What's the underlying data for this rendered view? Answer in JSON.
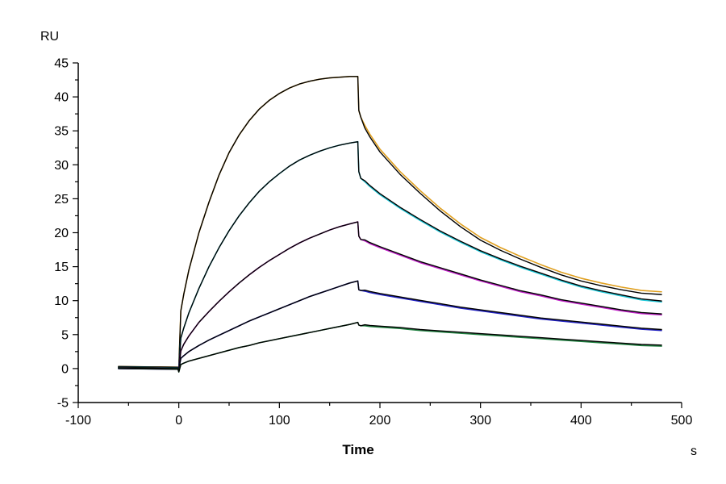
{
  "chart_data": {
    "type": "line",
    "title": "",
    "xlabel": "Time",
    "x_unit": "s",
    "ylabel": "RU",
    "xlim": [
      -100,
      500
    ],
    "ylim": [
      -5,
      45
    ],
    "x_ticks": [
      "-100",
      "0",
      "100",
      "200",
      "300",
      "400",
      "500"
    ],
    "y_ticks": [
      "-5",
      "0",
      "5",
      "10",
      "15",
      "20",
      "25",
      "30",
      "35",
      "40",
      "45"
    ],
    "grid": false,
    "legend": "none",
    "series": [
      {
        "color": "#E0A020",
        "fit_color": "#000000",
        "x": [
          -60,
          -1,
          0,
          2,
          5,
          10,
          20,
          30,
          40,
          50,
          60,
          70,
          80,
          90,
          100,
          110,
          120,
          130,
          140,
          150,
          160,
          170,
          178,
          179,
          181,
          185,
          190,
          200,
          220,
          240,
          260,
          280,
          300,
          320,
          340,
          360,
          380,
          400,
          420,
          440,
          460,
          480
        ],
        "y": [
          0.3,
          0.2,
          0.2,
          8.5,
          11,
          14.5,
          20,
          24.5,
          28.5,
          31.8,
          34.4,
          36.5,
          38.2,
          39.5,
          40.5,
          41.3,
          41.9,
          42.3,
          42.6,
          42.8,
          42.9,
          43.0,
          43.0,
          38.0,
          37.0,
          35.8,
          34.5,
          32.3,
          29.0,
          26.2,
          23.6,
          21.3,
          19.3,
          17.8,
          16.5,
          15.3,
          14.2,
          13.3,
          12.6,
          12.0,
          11.5,
          11.3
        ]
      },
      {
        "color": "#20C8D8",
        "fit_color": "#000000",
        "x": [
          -60,
          -1,
          0,
          2,
          5,
          10,
          20,
          30,
          40,
          50,
          60,
          70,
          80,
          90,
          100,
          110,
          120,
          130,
          140,
          150,
          160,
          170,
          178,
          179,
          181,
          185,
          190,
          200,
          220,
          240,
          260,
          280,
          300,
          320,
          340,
          360,
          380,
          400,
          420,
          440,
          460,
          480
        ],
        "y": [
          0.2,
          0.1,
          0.1,
          4.5,
          6,
          8.2,
          11.8,
          15.0,
          17.8,
          20.3,
          22.5,
          24.4,
          26.1,
          27.5,
          28.7,
          29.8,
          30.7,
          31.4,
          32.0,
          32.5,
          32.9,
          33.2,
          33.4,
          29.0,
          28.0,
          27.5,
          26.8,
          25.6,
          23.6,
          21.8,
          20.1,
          18.6,
          17.2,
          16.0,
          14.9,
          13.9,
          12.9,
          12.0,
          11.3,
          10.7,
          10.1,
          9.8
        ]
      },
      {
        "color": "#C020C8",
        "fit_color": "#000000",
        "x": [
          -60,
          -1,
          0,
          2,
          5,
          10,
          20,
          30,
          40,
          50,
          60,
          70,
          80,
          90,
          100,
          110,
          120,
          130,
          140,
          150,
          160,
          170,
          178,
          179,
          181,
          185,
          190,
          200,
          220,
          240,
          260,
          280,
          300,
          320,
          340,
          360,
          380,
          400,
          420,
          440,
          460,
          480
        ],
        "y": [
          0.1,
          0.0,
          0.0,
          2.6,
          3.6,
          4.8,
          6.8,
          8.4,
          9.9,
          11.3,
          12.6,
          13.8,
          14.9,
          15.9,
          16.8,
          17.7,
          18.5,
          19.2,
          19.8,
          20.4,
          20.9,
          21.3,
          21.6,
          19.5,
          19.0,
          18.8,
          18.4,
          17.8,
          16.7,
          15.6,
          14.7,
          13.8,
          12.9,
          12.1,
          11.3,
          10.7,
          10.0,
          9.5,
          9.0,
          8.5,
          8.1,
          7.9
        ]
      },
      {
        "color": "#2020C0",
        "fit_color": "#000000",
        "x": [
          -60,
          -1,
          0,
          2,
          5,
          10,
          20,
          30,
          40,
          50,
          60,
          70,
          80,
          90,
          100,
          110,
          120,
          130,
          140,
          150,
          160,
          170,
          178,
          179,
          181,
          185,
          190,
          200,
          220,
          240,
          260,
          280,
          300,
          320,
          340,
          360,
          380,
          400,
          420,
          440,
          460,
          480
        ],
        "y": [
          0.0,
          -0.1,
          -0.1,
          1.5,
          1.9,
          2.5,
          3.4,
          4.2,
          4.9,
          5.6,
          6.3,
          7.0,
          7.6,
          8.2,
          8.8,
          9.4,
          10.0,
          10.6,
          11.1,
          11.6,
          12.1,
          12.6,
          12.9,
          11.6,
          11.5,
          11.4,
          11.2,
          10.9,
          10.4,
          9.9,
          9.4,
          8.9,
          8.5,
          8.1,
          7.7,
          7.3,
          7.0,
          6.7,
          6.4,
          6.1,
          5.8,
          5.6
        ]
      },
      {
        "color": "#208040",
        "fit_color": "#000000",
        "x": [
          -60,
          -1,
          0,
          2,
          5,
          10,
          20,
          30,
          40,
          50,
          60,
          70,
          80,
          90,
          100,
          110,
          120,
          130,
          140,
          150,
          160,
          170,
          178,
          179,
          181,
          185,
          190,
          200,
          220,
          240,
          260,
          280,
          300,
          320,
          340,
          360,
          380,
          400,
          420,
          440,
          460,
          480
        ],
        "y": [
          0.1,
          0.0,
          -0.5,
          0.6,
          0.8,
          1.1,
          1.5,
          1.9,
          2.3,
          2.7,
          3.1,
          3.4,
          3.8,
          4.1,
          4.4,
          4.7,
          5.0,
          5.3,
          5.6,
          5.9,
          6.2,
          6.5,
          6.8,
          6.4,
          6.3,
          6.3,
          6.2,
          6.1,
          5.9,
          5.6,
          5.4,
          5.2,
          5.0,
          4.8,
          4.6,
          4.4,
          4.2,
          4.0,
          3.8,
          3.6,
          3.4,
          3.3
        ]
      }
    ]
  }
}
